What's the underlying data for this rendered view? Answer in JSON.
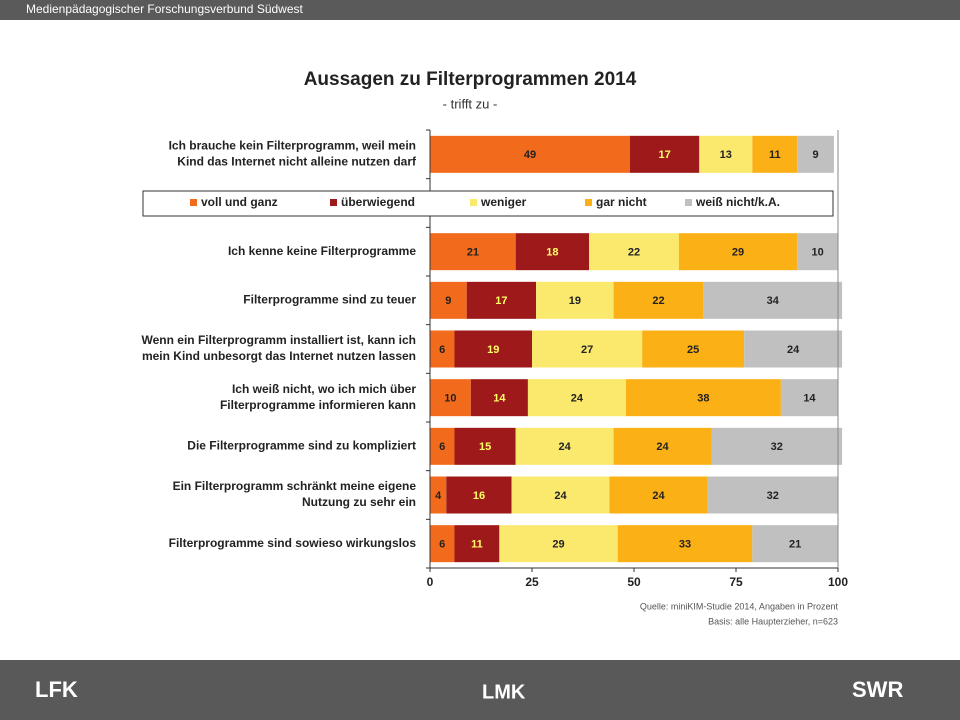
{
  "header": {
    "text": "Medienpädagogischer Forschungsverbund Südwest"
  },
  "chart_data": {
    "type": "stacked-barh",
    "title": "Aussagen zu Filterprogrammen 2014",
    "subtitle": "- trifft zu -",
    "categories": [
      [
        "Ich brauche kein Filterprogramm, weil mein",
        "Kind das Internet nicht alleine nutzen darf"
      ],
      [
        "Ich kenne keine Filterprogramme"
      ],
      [
        "Filterprogramme sind zu teuer"
      ],
      [
        "Wenn ein Filterprogramm installiert ist, kann ich",
        "mein Kind unbesorgt das Internet nutzen lassen"
      ],
      [
        "Ich weiß nicht, wo ich mich über",
        "Filterprogramme informieren kann"
      ],
      [
        "Die Filterprogramme sind zu kompliziert"
      ],
      [
        "Ein Filterprogramm schränkt meine eigene",
        "Nutzung zu sehr ein"
      ],
      [
        "Filterprogramme sind sowieso wirkungslos"
      ]
    ],
    "series": [
      {
        "name": "voll und ganz",
        "color": "#f26a1b",
        "label_color": "#222222",
        "values": [
          49,
          21,
          9,
          6,
          10,
          6,
          4,
          6
        ]
      },
      {
        "name": "überwiegend",
        "color": "#9e1a1a",
        "label_color": "#ffff66",
        "values": [
          17,
          18,
          17,
          19,
          14,
          15,
          16,
          11
        ]
      },
      {
        "name": "weniger",
        "color": "#fbe96e",
        "label_color": "#222222",
        "values": [
          13,
          22,
          19,
          27,
          24,
          24,
          24,
          29
        ]
      },
      {
        "name": "gar nicht",
        "color": "#fbb116",
        "label_color": "#222222",
        "values": [
          11,
          29,
          22,
          25,
          38,
          24,
          24,
          33
        ]
      },
      {
        "name": "weiß nicht/k.A.",
        "color": "#c0c0c0",
        "label_color": "#222222",
        "values": [
          9,
          10,
          34,
          24,
          14,
          32,
          32,
          21
        ]
      }
    ],
    "xlim": [
      0,
      100
    ],
    "xticks": [
      0,
      25,
      50,
      75,
      100
    ],
    "notes": [
      "Quelle: miniKIM-Studie 2014, Angaben in Prozent",
      "Basis: alle Haupterzieher, n=623"
    ]
  },
  "footer": {
    "logos": [
      "LFK",
      "LMK",
      "SWR"
    ]
  }
}
